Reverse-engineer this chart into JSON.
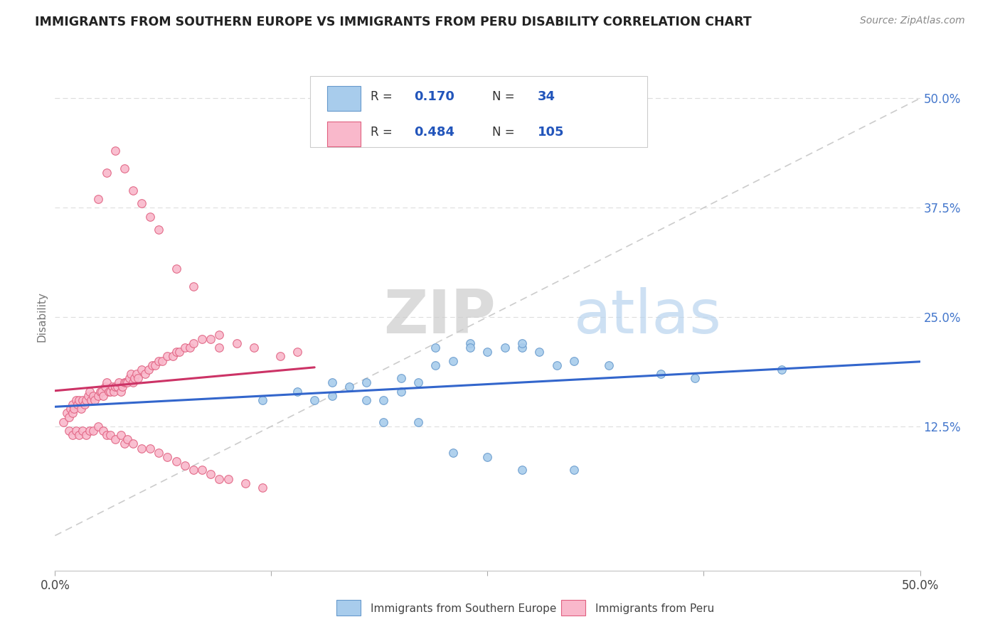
{
  "title": "IMMIGRANTS FROM SOUTHERN EUROPE VS IMMIGRANTS FROM PERU DISABILITY CORRELATION CHART",
  "source": "Source: ZipAtlas.com",
  "ylabel": "Disability",
  "xlim": [
    0.0,
    0.5
  ],
  "ylim": [
    -0.04,
    0.54
  ],
  "xtick_labels": [
    "0.0%",
    "",
    "",
    "",
    "50.0%"
  ],
  "xtick_vals": [
    0.0,
    0.125,
    0.25,
    0.375,
    0.5
  ],
  "ytick_labels": [
    "12.5%",
    "25.0%",
    "37.5%",
    "50.0%"
  ],
  "ytick_vals": [
    0.125,
    0.25,
    0.375,
    0.5
  ],
  "blue_color": "#a8ccec",
  "pink_color": "#f9b8cb",
  "blue_edge": "#6699cc",
  "pink_edge": "#e06080",
  "trendline_blue": "#3366cc",
  "trendline_pink": "#cc3366",
  "diag_color": "#cccccc",
  "legend_R_blue": "0.170",
  "legend_N_blue": "34",
  "legend_R_pink": "0.484",
  "legend_N_pink": "105",
  "legend_label_blue": "Immigrants from Southern Europe",
  "legend_label_pink": "Immigrants from Peru",
  "watermark_zip": "ZIP",
  "watermark_atlas": "atlas",
  "blue_scatter_x": [
    0.12,
    0.14,
    0.15,
    0.16,
    0.16,
    0.17,
    0.18,
    0.18,
    0.19,
    0.2,
    0.2,
    0.21,
    0.22,
    0.22,
    0.23,
    0.24,
    0.24,
    0.25,
    0.26,
    0.27,
    0.27,
    0.28,
    0.29,
    0.3,
    0.32,
    0.35,
    0.37,
    0.42,
    0.19,
    0.21,
    0.23,
    0.25,
    0.27,
    0.3
  ],
  "blue_scatter_y": [
    0.155,
    0.165,
    0.155,
    0.16,
    0.175,
    0.17,
    0.155,
    0.175,
    0.155,
    0.165,
    0.18,
    0.175,
    0.195,
    0.215,
    0.2,
    0.22,
    0.215,
    0.21,
    0.215,
    0.215,
    0.22,
    0.21,
    0.195,
    0.2,
    0.195,
    0.185,
    0.18,
    0.19,
    0.13,
    0.13,
    0.095,
    0.09,
    0.075,
    0.075
  ],
  "pink_scatter_x": [
    0.005,
    0.007,
    0.008,
    0.009,
    0.01,
    0.01,
    0.011,
    0.012,
    0.013,
    0.014,
    0.015,
    0.016,
    0.017,
    0.018,
    0.019,
    0.02,
    0.021,
    0.022,
    0.023,
    0.025,
    0.026,
    0.027,
    0.028,
    0.029,
    0.03,
    0.031,
    0.032,
    0.033,
    0.034,
    0.035,
    0.036,
    0.037,
    0.038,
    0.039,
    0.04,
    0.041,
    0.042,
    0.043,
    0.044,
    0.045,
    0.046,
    0.047,
    0.048,
    0.05,
    0.052,
    0.054,
    0.056,
    0.058,
    0.06,
    0.062,
    0.065,
    0.068,
    0.07,
    0.072,
    0.075,
    0.078,
    0.08,
    0.085,
    0.09,
    0.095,
    0.008,
    0.01,
    0.012,
    0.014,
    0.016,
    0.018,
    0.02,
    0.022,
    0.025,
    0.028,
    0.03,
    0.032,
    0.035,
    0.038,
    0.04,
    0.042,
    0.045,
    0.05,
    0.055,
    0.06,
    0.065,
    0.07,
    0.075,
    0.08,
    0.085,
    0.09,
    0.095,
    0.1,
    0.11,
    0.12,
    0.025,
    0.03,
    0.035,
    0.04,
    0.045,
    0.05,
    0.055,
    0.06,
    0.07,
    0.08,
    0.095,
    0.105,
    0.115,
    0.13,
    0.14
  ],
  "pink_scatter_y": [
    0.13,
    0.14,
    0.135,
    0.145,
    0.14,
    0.15,
    0.145,
    0.155,
    0.15,
    0.155,
    0.145,
    0.155,
    0.15,
    0.155,
    0.16,
    0.165,
    0.155,
    0.16,
    0.155,
    0.16,
    0.165,
    0.165,
    0.16,
    0.17,
    0.175,
    0.165,
    0.165,
    0.17,
    0.165,
    0.17,
    0.17,
    0.175,
    0.165,
    0.17,
    0.175,
    0.175,
    0.175,
    0.18,
    0.185,
    0.175,
    0.18,
    0.185,
    0.18,
    0.19,
    0.185,
    0.19,
    0.195,
    0.195,
    0.2,
    0.2,
    0.205,
    0.205,
    0.21,
    0.21,
    0.215,
    0.215,
    0.22,
    0.225,
    0.225,
    0.23,
    0.12,
    0.115,
    0.12,
    0.115,
    0.12,
    0.115,
    0.12,
    0.12,
    0.125,
    0.12,
    0.115,
    0.115,
    0.11,
    0.115,
    0.105,
    0.11,
    0.105,
    0.1,
    0.1,
    0.095,
    0.09,
    0.085,
    0.08,
    0.075,
    0.075,
    0.07,
    0.065,
    0.065,
    0.06,
    0.055,
    0.385,
    0.415,
    0.44,
    0.42,
    0.395,
    0.38,
    0.365,
    0.35,
    0.305,
    0.285,
    0.215,
    0.22,
    0.215,
    0.205,
    0.21
  ]
}
